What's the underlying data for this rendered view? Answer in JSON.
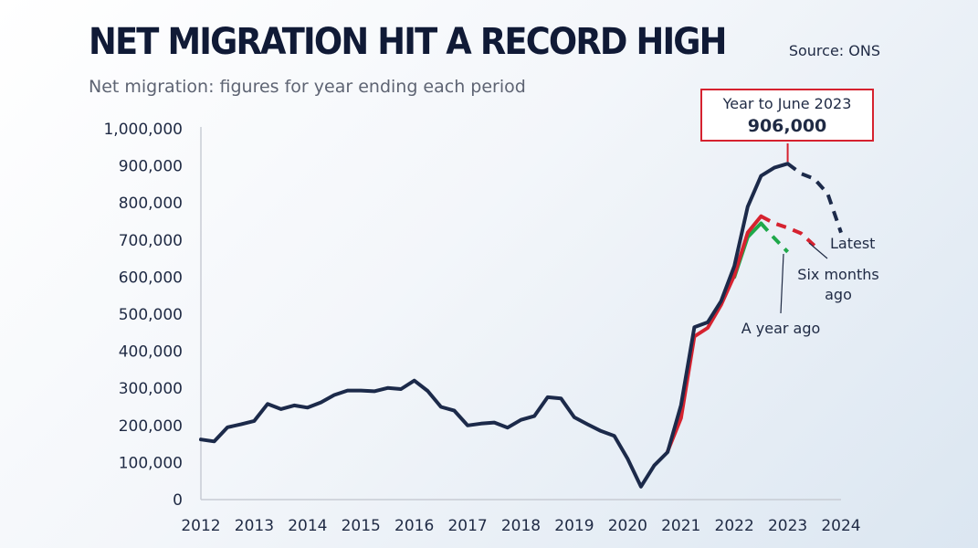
{
  "header": {
    "title": "NET MIGRATION HIT A RECORD HIGH",
    "subtitle": "Net migration: figures for year ending each period",
    "source": "Source: ONS"
  },
  "callout": {
    "label": "Year to June 2023",
    "value": "906,000"
  },
  "colors": {
    "latest": "#1c2a4a",
    "six_months_ago": "#d6222f",
    "a_year_ago": "#1fa84a",
    "callout_border": "#d6222f"
  },
  "chart_data": {
    "type": "line",
    "title": "NET MIGRATION HIT A RECORD HIGH",
    "subtitle": "Net migration: figures for year ending each period",
    "xlabel": "",
    "ylabel": "",
    "ylim": [
      0,
      1000000
    ],
    "xlim": [
      2012,
      2024
    ],
    "y_ticks": [
      0,
      100000,
      200000,
      300000,
      400000,
      500000,
      600000,
      700000,
      800000,
      900000,
      1000000
    ],
    "y_tick_labels": [
      "0",
      "100,000",
      "200,000",
      "300,000",
      "400,000",
      "500,000",
      "600,000",
      "700,000",
      "800,000",
      "900,000",
      "1,000,000"
    ],
    "x_ticks": [
      2012,
      2013,
      2014,
      2015,
      2016,
      2017,
      2018,
      2019,
      2020,
      2021,
      2022,
      2023,
      2024
    ],
    "x_tick_labels": [
      "2012",
      "2013",
      "2014",
      "2015",
      "2016",
      "2017",
      "2018",
      "2019",
      "2020",
      "2021",
      "2022",
      "2023",
      "2024"
    ],
    "grid": false,
    "series": [
      {
        "name": "Latest",
        "color": "#1c2a4a",
        "points": [
          [
            2012.0,
            162000
          ],
          [
            2012.25,
            157000
          ],
          [
            2012.5,
            195000
          ],
          [
            2012.75,
            203000
          ],
          [
            2013.0,
            212000
          ],
          [
            2013.25,
            258000
          ],
          [
            2013.5,
            244000
          ],
          [
            2013.75,
            254000
          ],
          [
            2014.0,
            248000
          ],
          [
            2014.25,
            262000
          ],
          [
            2014.5,
            282000
          ],
          [
            2014.75,
            294000
          ],
          [
            2015.0,
            294000
          ],
          [
            2015.25,
            292000
          ],
          [
            2015.5,
            301000
          ],
          [
            2015.75,
            298000
          ],
          [
            2016.0,
            321000
          ],
          [
            2016.25,
            293000
          ],
          [
            2016.5,
            250000
          ],
          [
            2016.75,
            240000
          ],
          [
            2017.0,
            200000
          ],
          [
            2017.25,
            205000
          ],
          [
            2017.5,
            208000
          ],
          [
            2017.75,
            194000
          ],
          [
            2018.0,
            215000
          ],
          [
            2018.25,
            225000
          ],
          [
            2018.5,
            276000
          ],
          [
            2018.75,
            273000
          ],
          [
            2019.0,
            222000
          ],
          [
            2019.25,
            203000
          ],
          [
            2019.5,
            185000
          ],
          [
            2019.75,
            172000
          ],
          [
            2020.0,
            110000
          ],
          [
            2020.25,
            35000
          ],
          [
            2020.5,
            92000
          ],
          [
            2020.75,
            128000
          ],
          [
            2021.0,
            255000
          ],
          [
            2021.25,
            465000
          ],
          [
            2021.5,
            478000
          ],
          [
            2021.75,
            535000
          ],
          [
            2022.0,
            630000
          ],
          [
            2022.25,
            790000
          ],
          [
            2022.5,
            873000
          ],
          [
            2022.75,
            895000
          ],
          [
            2023.0,
            906000
          ]
        ],
        "provisional_points": [
          [
            2023.0,
            906000
          ],
          [
            2023.25,
            879000
          ],
          [
            2023.5,
            865000
          ],
          [
            2023.75,
            825000
          ],
          [
            2024.0,
            720000
          ]
        ]
      },
      {
        "name": "Six months ago",
        "color": "#d6222f",
        "points": [
          [
            2020.75,
            130000
          ],
          [
            2021.0,
            220000
          ],
          [
            2021.25,
            440000
          ],
          [
            2021.5,
            463000
          ],
          [
            2021.75,
            525000
          ],
          [
            2022.0,
            605000
          ],
          [
            2022.25,
            720000
          ],
          [
            2022.5,
            764000
          ]
        ],
        "provisional_points": [
          [
            2022.5,
            764000
          ],
          [
            2022.75,
            745000
          ],
          [
            2023.0,
            733000
          ],
          [
            2023.25,
            718000
          ],
          [
            2023.5,
            685000
          ]
        ]
      },
      {
        "name": "A year ago",
        "color": "#1fa84a",
        "points": [
          [
            2022.0,
            600000
          ],
          [
            2022.25,
            708000
          ],
          [
            2022.5,
            745000
          ]
        ],
        "provisional_points": [
          [
            2022.5,
            745000
          ],
          [
            2022.75,
            705000
          ],
          [
            2023.0,
            668000
          ]
        ]
      }
    ],
    "annotations": [
      {
        "text": "Latest"
      },
      {
        "text": "Six months ago",
        "lines": [
          "Six months",
          "ago"
        ]
      },
      {
        "text": "A year ago"
      }
    ]
  }
}
